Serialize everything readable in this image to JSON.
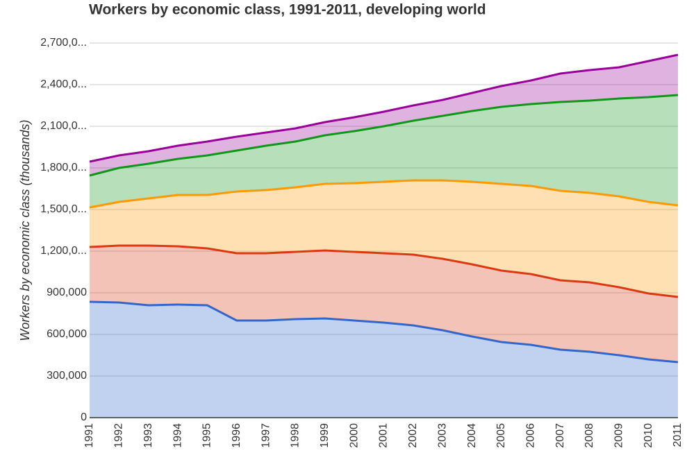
{
  "chart_data": {
    "type": "stacked-area",
    "title": "Workers by economic class, 1991-2011, developing world",
    "y_label": "Workers by economic class (thousands)",
    "categories": [
      "1991",
      "1992",
      "1993",
      "1994",
      "1995",
      "1996",
      "1997",
      "1998",
      "1999",
      "2000",
      "2001",
      "2002",
      "2003",
      "2004",
      "2005",
      "2006",
      "2007",
      "2008",
      "2009",
      "2010",
      "2011"
    ],
    "series": [
      {
        "color": "#3366cc",
        "values": [
          835000,
          830000,
          810000,
          815000,
          810000,
          700000,
          700000,
          710000,
          715000,
          700000,
          685000,
          665000,
          630000,
          585000,
          545000,
          525000,
          490000,
          475000,
          450000,
          420000,
          400000
        ]
      },
      {
        "color": "#dc3912",
        "values": [
          395000,
          410000,
          430000,
          420000,
          410000,
          485000,
          485000,
          485000,
          490000,
          495000,
          500000,
          510000,
          515000,
          520000,
          515000,
          510000,
          500000,
          500000,
          490000,
          475000,
          470000
        ]
      },
      {
        "color": "#ff9900",
        "values": [
          285000,
          315000,
          340000,
          370000,
          385000,
          445000,
          455000,
          465000,
          480000,
          495000,
          515000,
          535000,
          565000,
          595000,
          625000,
          635000,
          645000,
          645000,
          655000,
          660000,
          660000
        ]
      },
      {
        "color": "#109618",
        "values": [
          230000,
          245000,
          250000,
          260000,
          285000,
          295000,
          320000,
          330000,
          350000,
          375000,
          400000,
          430000,
          465000,
          510000,
          555000,
          590000,
          640000,
          665000,
          705000,
          755000,
          795000
        ]
      },
      {
        "color": "#990099",
        "values": [
          100000,
          90000,
          90000,
          95000,
          100000,
          100000,
          95000,
          95000,
          95000,
          100000,
          105000,
          110000,
          115000,
          130000,
          150000,
          170000,
          205000,
          220000,
          225000,
          260000,
          290000
        ]
      }
    ],
    "ylim": [
      0,
      2700000
    ],
    "yticks": [
      0,
      {
        "value": 300000,
        "label": "300,000"
      },
      {
        "value": 600000,
        "label": "600,000"
      },
      {
        "value": 900000,
        "label": "900,000"
      },
      {
        "value": 1200000,
        "label": "1,200,0..."
      },
      {
        "value": 1500000,
        "label": "1,500,0..."
      },
      {
        "value": 1800000,
        "label": "1,800,0..."
      },
      {
        "value": 2100000,
        "label": "2,100,0..."
      },
      {
        "value": 2400000,
        "label": "2,400,0..."
      },
      {
        "value": 2700000,
        "label": "2,700,0..."
      }
    ],
    "grid": true
  }
}
